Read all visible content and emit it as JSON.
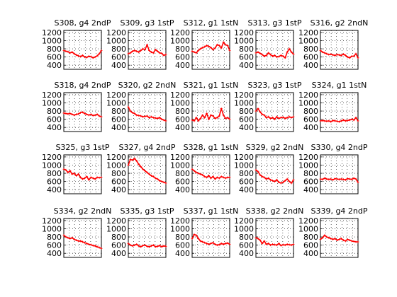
{
  "chart_data": {
    "type": "line",
    "line_color": "#ff0000",
    "grid": true,
    "ylim": [
      300,
      1250
    ],
    "yticks": [
      "400",
      "600",
      "800",
      "1000",
      "1200"
    ],
    "panels": [
      {
        "title": "S308, g4 2ndP",
        "values": [
          760,
          740,
          730,
          700,
          720,
          680,
          650,
          630,
          610,
          640,
          600,
          590,
          620,
          610,
          580,
          600,
          630,
          680,
          760
        ]
      },
      {
        "title": "S309, g3 1stP",
        "values": [
          680,
          700,
          740,
          760,
          740,
          720,
          760,
          800,
          780,
          900,
          760,
          720,
          700,
          780,
          740,
          700,
          690,
          640,
          660
        ]
      },
      {
        "title": "S312, g1 1stN",
        "values": [
          740,
          720,
          700,
          760,
          800,
          830,
          850,
          880,
          860,
          830,
          780,
          820,
          900,
          880,
          820,
          960,
          900,
          880,
          760
        ]
      },
      {
        "title": "S313, g3 1stP",
        "values": [
          700,
          720,
          690,
          660,
          620,
          640,
          700,
          660,
          620,
          640,
          600,
          610,
          640,
          620,
          580,
          720,
          800,
          720,
          670
        ]
      },
      {
        "title": "S316, g2 2ndN",
        "values": [
          760,
          720,
          700,
          680,
          660,
          670,
          650,
          640,
          660,
          650,
          640,
          670,
          640,
          600,
          580,
          620,
          620,
          680,
          580
        ]
      },
      {
        "title": "S318, g4 2ndP",
        "values": [
          750,
          740,
          730,
          740,
          720,
          700,
          720,
          730,
          760,
          770,
          740,
          720,
          700,
          720,
          690,
          700,
          720,
          680,
          660
        ]
      },
      {
        "title": "S320, g2 2ndN",
        "values": [
          900,
          800,
          760,
          740,
          700,
          690,
          680,
          660,
          670,
          680,
          640,
          660,
          640,
          630,
          620,
          640,
          600,
          580,
          560
        ]
      },
      {
        "title": "S321, g1 1stN",
        "values": [
          580,
          560,
          640,
          560,
          620,
          700,
          640,
          740,
          600,
          700,
          680,
          620,
          640,
          680,
          860,
          700,
          620,
          640,
          600
        ]
      },
      {
        "title": "S323, g3 1stP",
        "values": [
          800,
          860,
          780,
          720,
          700,
          640,
          660,
          620,
          640,
          600,
          660,
          620,
          640,
          650,
          620,
          640,
          660,
          640,
          660
        ]
      },
      {
        "title": "S324, g1 1stN",
        "values": [
          560,
          570,
          560,
          550,
          560,
          540,
          570,
          560,
          550,
          540,
          560,
          580,
          560,
          570,
          580,
          600,
          580,
          640,
          560
        ]
      },
      {
        "title": "S325, g3 1stP",
        "values": [
          900,
          880,
          820,
          860,
          780,
          800,
          740,
          780,
          700,
          660,
          680,
          720,
          640,
          700,
          680,
          660,
          700,
          690,
          700
        ]
      },
      {
        "title": "S327, g4 2ndP",
        "values": [
          1000,
          1140,
          1120,
          1160,
          1100,
          1020,
          960,
          900,
          860,
          820,
          780,
          740,
          720,
          680,
          660,
          620,
          600,
          580,
          560
        ]
      },
      {
        "title": "S328, g1 1stN",
        "values": [
          900,
          860,
          820,
          800,
          780,
          760,
          720,
          700,
          740,
          680,
          720,
          660,
          700,
          680,
          720,
          700,
          680,
          700,
          700
        ]
      },
      {
        "title": "S329, g2 2ndN",
        "values": [
          880,
          840,
          760,
          720,
          700,
          660,
          680,
          640,
          620,
          600,
          640,
          580,
          560,
          580,
          620,
          660,
          600,
          560,
          640
        ]
      },
      {
        "title": "S330, g4 2ndP",
        "values": [
          660,
          650,
          680,
          660,
          650,
          660,
          640,
          670,
          660,
          650,
          660,
          650,
          640,
          670,
          660,
          650,
          680,
          660,
          580
        ]
      },
      {
        "title": "S334, g2 2ndN",
        "values": [
          840,
          800,
          780,
          760,
          780,
          740,
          720,
          700,
          700,
          680,
          660,
          640,
          620,
          610,
          590,
          580,
          560,
          540,
          520
        ]
      },
      {
        "title": "S335, g3 1stP",
        "values": [
          640,
          600,
          580,
          600,
          620,
          580,
          560,
          590,
          600,
          570,
          560,
          580,
          600,
          560,
          570,
          590,
          560,
          580,
          570
        ]
      },
      {
        "title": "S337, g1 1stN",
        "values": [
          760,
          860,
          840,
          760,
          700,
          680,
          660,
          640,
          620,
          640,
          660,
          620,
          600,
          610,
          640,
          620,
          640,
          650,
          620
        ]
      },
      {
        "title": "S338, g2 2ndN",
        "values": [
          780,
          760,
          720,
          640,
          700,
          620,
          640,
          600,
          620,
          610,
          600,
          640,
          590,
          610,
          600,
          620,
          610,
          600,
          620
        ]
      },
      {
        "title": "S339, g4 2ndP",
        "values": [
          740,
          780,
          840,
          800,
          780,
          760,
          740,
          760,
          720,
          740,
          760,
          720,
          700,
          740,
          720,
          700,
          690,
          680,
          680
        ]
      }
    ]
  }
}
